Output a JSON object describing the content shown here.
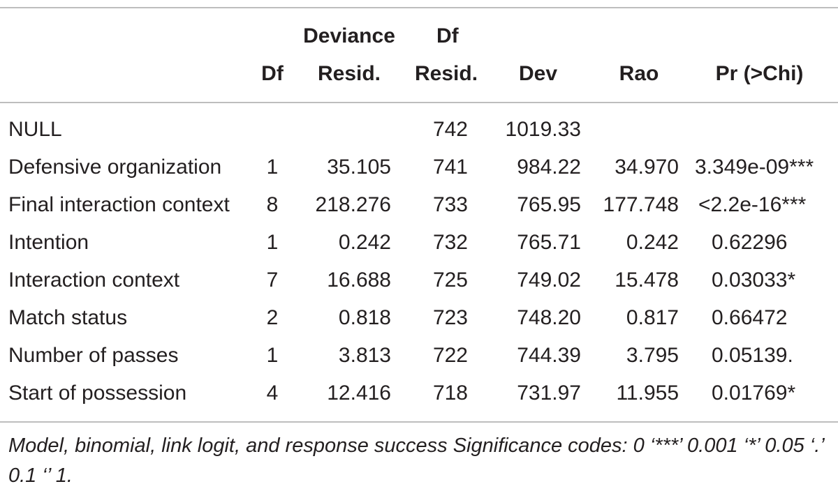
{
  "table": {
    "header": {
      "df": "Df",
      "dev_resid_line1": "Deviance",
      "dev_resid_line2": "Resid.",
      "df_resid_line1": "Df",
      "df_resid_line2": "Resid.",
      "dev": "Dev",
      "rao": "Rao",
      "pr": "Pr (>Chi)"
    },
    "rows": [
      {
        "term": "NULL",
        "df": "",
        "deviance_resid": "",
        "df_resid": "742",
        "dev": "1019.33",
        "rao": "",
        "pr": ""
      },
      {
        "term": "Defensive organization",
        "df": "1",
        "deviance_resid": "35.105",
        "df_resid": "741",
        "dev": "984.22",
        "rao": "34.970",
        "pr": "3.349e-09***"
      },
      {
        "term": "Final interaction context",
        "df": "8",
        "deviance_resid": "218.276",
        "df_resid": "733",
        "dev": "765.95",
        "rao": "177.748",
        "pr": "<2.2e-16***"
      },
      {
        "term": "Intention",
        "df": "1",
        "deviance_resid": "0.242",
        "df_resid": "732",
        "dev": "765.71",
        "rao": "0.242",
        "pr": "0.62296"
      },
      {
        "term": "Interaction context",
        "df": "7",
        "deviance_resid": "16.688",
        "df_resid": "725",
        "dev": "749.02",
        "rao": "15.478",
        "pr": "0.03033*"
      },
      {
        "term": "Match status",
        "df": "2",
        "deviance_resid": "0.818",
        "df_resid": "723",
        "dev": "748.20",
        "rao": "0.817",
        "pr": "0.66472"
      },
      {
        "term": "Number of passes",
        "df": "1",
        "deviance_resid": "3.813",
        "df_resid": "722",
        "dev": "744.39",
        "rao": "3.795",
        "pr": "0.05139."
      },
      {
        "term": "Start of possession",
        "df": "4",
        "deviance_resid": "12.416",
        "df_resid": "718",
        "dev": "731.97",
        "rao": "11.955",
        "pr": "0.01769*"
      }
    ],
    "footnote": "Model, binomial, link logit, and response success Significance codes: 0 ‘***’ 0.001 ‘*’ 0.05 ‘.’ 0.1 ‘’ 1."
  }
}
